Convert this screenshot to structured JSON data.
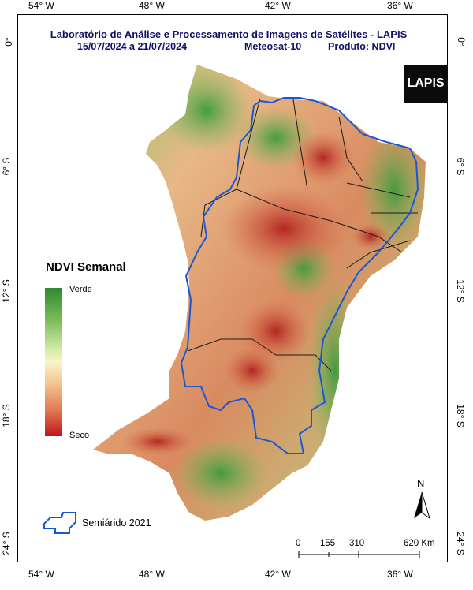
{
  "title": "Laboratório de Análise e Processamento de Imagens de Satélites - LAPIS",
  "period": "15/07/2024  a  21/07/2024",
  "satellite": "Meteosat-10",
  "product": "Produto: NDVI",
  "logo_text": "LAPIS",
  "axes": {
    "top_lon": [
      "54° W",
      "48° W",
      "42° W",
      "36° W"
    ],
    "bottom_lon": [
      "54° W",
      "48° W",
      "42° W",
      "36° W"
    ],
    "left_lat": [
      "0°",
      "6° S",
      "12° S",
      "18° S",
      "24° S"
    ],
    "right_lat": [
      "0°",
      "6° S",
      "12° S",
      "18° S",
      "24° S"
    ]
  },
  "legend": {
    "title": "NDVI Semanal",
    "high_label": "Verde",
    "low_label": "Seco",
    "colors": [
      "#2f8a2f",
      "#d6ecaa",
      "#fbf3c8",
      "#df7c52",
      "#c0161b"
    ]
  },
  "semiarid_label": "Semiárido 2021",
  "semiarid_color": "#1a57d6",
  "north_label": "N",
  "scale": {
    "ticks": [
      "0",
      "155",
      "310",
      "620 Km"
    ]
  }
}
